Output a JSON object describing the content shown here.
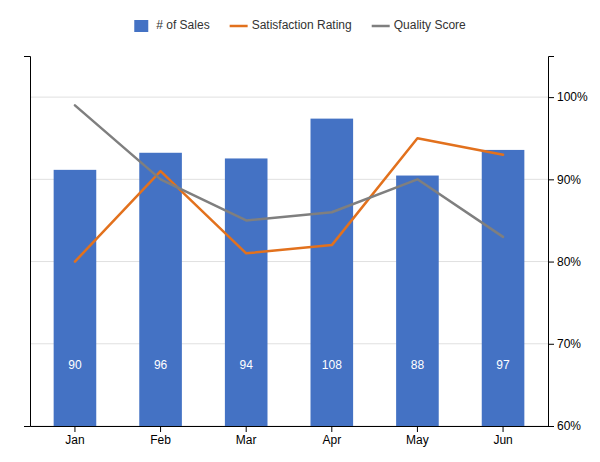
{
  "chart_data": {
    "type": "bar",
    "categories": [
      "Jan",
      "Feb",
      "Mar",
      "Apr",
      "May",
      "Jun"
    ],
    "series": [
      {
        "name": "# of Sales",
        "type": "bar",
        "color": "#4472C4",
        "values": [
          90,
          96,
          94,
          108,
          88,
          97
        ]
      },
      {
        "name": "Satisfaction Rating",
        "type": "line",
        "axis": "y2",
        "color": "#E2711D",
        "values": [
          0.8,
          0.91,
          0.81,
          0.82,
          0.95,
          0.93
        ]
      },
      {
        "name": "Quality Score",
        "type": "line",
        "axis": "y2",
        "color": "#7F7F7F",
        "values": [
          0.99,
          0.9,
          0.85,
          0.86,
          0.9,
          0.83
        ]
      }
    ],
    "ylim": [
      0,
      130
    ],
    "yticks": [],
    "y2lim": [
      0.6,
      1.05
    ],
    "y2ticks": [
      {
        "value": 0.6,
        "label": "60%"
      },
      {
        "value": 0.7,
        "label": "70%"
      },
      {
        "value": 0.8,
        "label": "80%"
      },
      {
        "value": 0.9,
        "label": "90%"
      },
      {
        "value": 1.0,
        "label": "100%"
      }
    ],
    "grid": true,
    "data_labels": true,
    "legend": "top"
  }
}
